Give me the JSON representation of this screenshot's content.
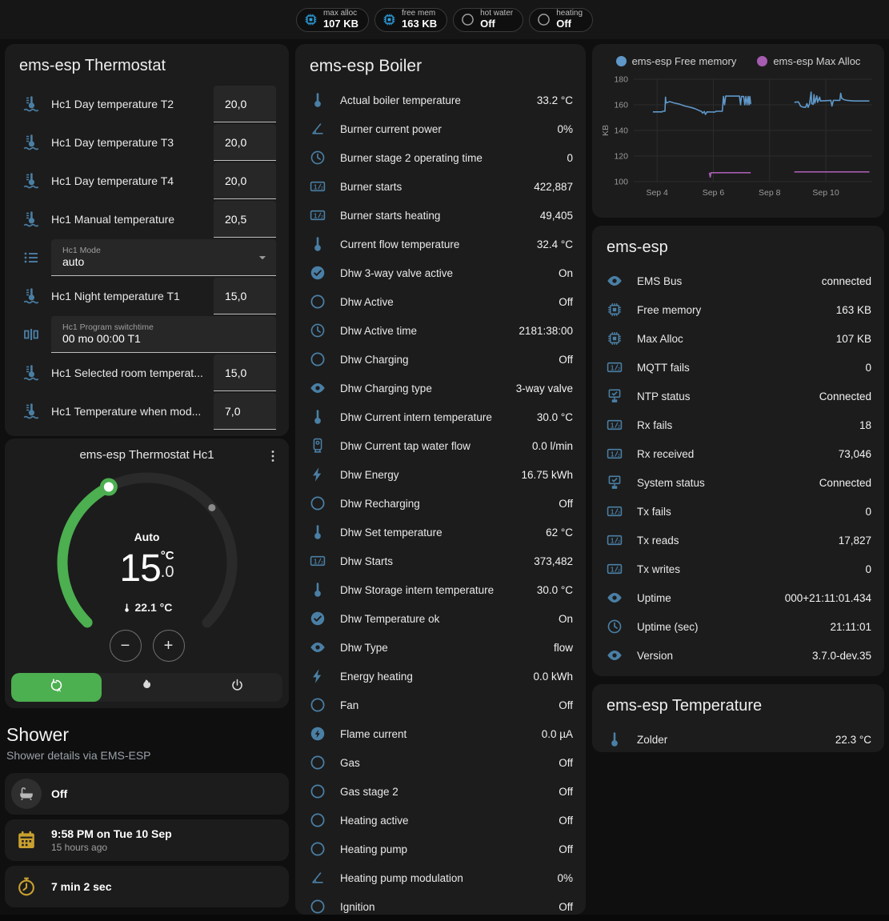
{
  "header": {
    "chips": [
      {
        "icon": "chip",
        "icon_color": "blue",
        "label": "max alloc",
        "value": "107 KB"
      },
      {
        "icon": "chip",
        "icon_color": "blue",
        "label": "free mem",
        "value": "163 KB"
      },
      {
        "icon": "circle",
        "icon_color": "gray",
        "label": "hot water",
        "value": "Off"
      },
      {
        "icon": "circle",
        "icon_color": "gray",
        "label": "heating",
        "value": "Off"
      }
    ]
  },
  "thermostat_card": {
    "title": "ems-esp Thermostat",
    "rows": [
      {
        "type": "number",
        "icon": "thermometer-waves",
        "label": "Hc1 Day temperature T2",
        "value": "20,0"
      },
      {
        "type": "number",
        "icon": "thermometer-waves",
        "label": "Hc1 Day temperature T3",
        "value": "20,0"
      },
      {
        "type": "number",
        "icon": "thermometer-waves",
        "label": "Hc1 Day temperature T4",
        "value": "20,0"
      },
      {
        "type": "number",
        "icon": "thermometer-waves",
        "label": "Hc1 Manual temperature",
        "value": "20,5"
      },
      {
        "type": "select",
        "icon": "list",
        "label": "Hc1 Mode",
        "value": "auto"
      },
      {
        "type": "number",
        "icon": "thermometer-waves",
        "label": "Hc1 Night temperature T1",
        "value": "15,0"
      },
      {
        "type": "text",
        "icon": "pipe-valve",
        "label": "Hc1 Program switchtime",
        "value": "00 mo 00:00 T1"
      },
      {
        "type": "number",
        "icon": "thermometer-waves",
        "label": "Hc1 Selected room temperat...",
        "value": "15,0"
      },
      {
        "type": "number",
        "icon": "thermometer-waves",
        "label": "Hc1 Temperature when mod...",
        "value": "7,0"
      }
    ]
  },
  "dial_card": {
    "title": "ems-esp Thermostat Hc1",
    "mode_label": "Auto",
    "target_int": "15",
    "target_unit": "°C",
    "target_frac": ".0",
    "current": "22.1 °C",
    "minus_label": "−",
    "plus_label": "+",
    "arc_color": "#4caf50",
    "modes": [
      {
        "icon": "autorenew-a",
        "selected": true
      },
      {
        "icon": "fire",
        "selected": false
      },
      {
        "icon": "power",
        "selected": false
      }
    ]
  },
  "shower": {
    "title": "Shower",
    "subtitle": "Shower details via EMS-ESP",
    "cards": [
      {
        "icon": "bathtub",
        "text": "Off"
      },
      {
        "icon": "calendar",
        "text": "9:58 PM on Tue 10 Sep",
        "sub": "15 hours ago"
      },
      {
        "icon": "timer",
        "text": "7 min 2 sec"
      },
      {
        "icon": "snowflake-alert"
      }
    ]
  },
  "boiler_card": {
    "title": "ems-esp Boiler",
    "rows": [
      {
        "icon": "thermometer",
        "label": "Actual boiler temperature",
        "value": "33.2 °C"
      },
      {
        "icon": "angle",
        "label": "Burner current power",
        "value": "0%"
      },
      {
        "icon": "clock",
        "label": "Burner stage 2 operating time",
        "value": "0"
      },
      {
        "icon": "counter",
        "label": "Burner starts",
        "value": "422,887"
      },
      {
        "icon": "counter",
        "label": "Burner starts heating",
        "value": "49,405"
      },
      {
        "icon": "thermometer",
        "label": "Current flow temperature",
        "value": "32.4 °C"
      },
      {
        "icon": "check-circle",
        "label": "Dhw 3-way valve active",
        "value": "On"
      },
      {
        "icon": "circle",
        "label": "Dhw Active",
        "value": "Off"
      },
      {
        "icon": "clock",
        "label": "Dhw Active time",
        "value": "2181:38:00"
      },
      {
        "icon": "circle",
        "label": "Dhw Charging",
        "value": "Off"
      },
      {
        "icon": "eye",
        "label": "Dhw Charging type",
        "value": "3-way valve"
      },
      {
        "icon": "thermometer",
        "label": "Dhw Current intern temperature",
        "value": "30.0 °C"
      },
      {
        "icon": "water-heater",
        "label": "Dhw Current tap water flow",
        "value": "0.0 l/min"
      },
      {
        "icon": "flash",
        "label": "Dhw Energy",
        "value": "16.75 kWh"
      },
      {
        "icon": "circle",
        "label": "Dhw Recharging",
        "value": "Off"
      },
      {
        "icon": "thermometer",
        "label": "Dhw Set temperature",
        "value": "62 °C"
      },
      {
        "icon": "counter",
        "label": "Dhw Starts",
        "value": "373,482"
      },
      {
        "icon": "thermometer",
        "label": "Dhw Storage intern temperature",
        "value": "30.0 °C"
      },
      {
        "icon": "check-circle",
        "label": "Dhw Temperature ok",
        "value": "On"
      },
      {
        "icon": "eye",
        "label": "Dhw Type",
        "value": "flow"
      },
      {
        "icon": "flash",
        "label": "Energy heating",
        "value": "0.0 kWh"
      },
      {
        "icon": "circle",
        "label": "Fan",
        "value": "Off"
      },
      {
        "icon": "flash-circle",
        "label": "Flame current",
        "value": "0.0 µA"
      },
      {
        "icon": "circle",
        "label": "Gas",
        "value": "Off"
      },
      {
        "icon": "circle",
        "label": "Gas stage 2",
        "value": "Off"
      },
      {
        "icon": "circle",
        "label": "Heating active",
        "value": "Off"
      },
      {
        "icon": "circle",
        "label": "Heating pump",
        "value": "Off"
      },
      {
        "icon": "angle",
        "label": "Heating pump modulation",
        "value": "0%"
      },
      {
        "icon": "circle",
        "label": "Ignition",
        "value": "Off"
      }
    ]
  },
  "emsesp_card": {
    "title": "ems-esp",
    "rows": [
      {
        "icon": "eye",
        "label": "EMS Bus",
        "value": "connected"
      },
      {
        "icon": "chip",
        "label": "Free memory",
        "value": "163 KB"
      },
      {
        "icon": "chip",
        "label": "Max Alloc",
        "value": "107 KB"
      },
      {
        "icon": "counter",
        "label": "MQTT fails",
        "value": "0"
      },
      {
        "icon": "lan-check",
        "label": "NTP status",
        "value": "Connected"
      },
      {
        "icon": "counter",
        "label": "Rx fails",
        "value": "18"
      },
      {
        "icon": "counter",
        "label": "Rx received",
        "value": "73,046"
      },
      {
        "icon": "lan-check",
        "label": "System status",
        "value": "Connected"
      },
      {
        "icon": "counter",
        "label": "Tx fails",
        "value": "0"
      },
      {
        "icon": "counter",
        "label": "Tx reads",
        "value": "17,827"
      },
      {
        "icon": "counter",
        "label": "Tx writes",
        "value": "0"
      },
      {
        "icon": "eye",
        "label": "Uptime",
        "value": "000+21:11:01.434"
      },
      {
        "icon": "clock",
        "label": "Uptime (sec)",
        "value": "21:11:01"
      },
      {
        "icon": "eye",
        "label": "Version",
        "value": "3.7.0-dev.35"
      }
    ]
  },
  "temperature_card": {
    "title": "ems-esp Temperature",
    "rows": [
      {
        "icon": "thermometer",
        "label": "Zolder",
        "value": "22.3 °C"
      }
    ]
  },
  "chart_data": {
    "type": "line",
    "ylabel": "KB",
    "ylim": [
      100,
      180
    ],
    "yticks": [
      100,
      120,
      140,
      160,
      180
    ],
    "xlim": [
      3.17,
      11.65
    ],
    "xticks": [
      {
        "x": 4,
        "label": "Sep 4"
      },
      {
        "x": 6,
        "label": "Sep 6"
      },
      {
        "x": 8,
        "label": "Sep 8"
      },
      {
        "x": 10,
        "label": "Sep 10"
      }
    ],
    "grid": true,
    "legend_position": "top",
    "series": [
      {
        "name": "ems-esp Free memory",
        "color": "#5f97c8",
        "segments": [
          [
            [
              3.85,
              154.5
            ],
            [
              4.18,
              154.5
            ],
            [
              4.2,
              155
            ],
            [
              4.28,
              155
            ],
            [
              4.3,
              166
            ],
            [
              4.32,
              161.5
            ],
            [
              4.45,
              162.5
            ],
            [
              4.6,
              161.5
            ],
            [
              4.8,
              160.5
            ],
            [
              5.0,
              159
            ],
            [
              5.2,
              158
            ],
            [
              5.35,
              157
            ],
            [
              5.5,
              155.5
            ],
            [
              5.58,
              154.8
            ],
            [
              5.62,
              153.5
            ],
            [
              5.68,
              154.8
            ],
            [
              5.72,
              152.5
            ],
            [
              5.78,
              154.5
            ],
            [
              6.05,
              154.3
            ],
            [
              6.1,
              155
            ],
            [
              6.32,
              155
            ],
            [
              6.36,
              166.5
            ],
            [
              6.4,
              160
            ],
            [
              6.44,
              166.8
            ],
            [
              6.5,
              166.8
            ],
            [
              6.93,
              166.8
            ],
            [
              6.97,
              160
            ],
            [
              7.0,
              166.5
            ],
            [
              7.08,
              166.5
            ],
            [
              7.12,
              160
            ],
            [
              7.16,
              166.5
            ],
            [
              7.2,
              160
            ],
            [
              7.24,
              166.5
            ],
            [
              7.27,
              160
            ],
            [
              7.3,
              166.5
            ],
            [
              7.33,
              160.5
            ]
          ],
          [
            [
              8.88,
              162
            ],
            [
              9.02,
              162.3
            ],
            [
              9.06,
              161
            ],
            [
              9.1,
              159
            ],
            [
              9.18,
              158.3
            ],
            [
              9.28,
              158
            ],
            [
              9.33,
              161
            ],
            [
              9.37,
              158
            ],
            [
              9.42,
              160.5
            ],
            [
              9.48,
              170
            ],
            [
              9.5,
              161
            ],
            [
              9.55,
              160.3
            ],
            [
              9.58,
              168
            ],
            [
              9.61,
              161.3
            ],
            [
              9.68,
              167
            ],
            [
              9.71,
              162
            ],
            [
              9.78,
              166
            ],
            [
              9.81,
              163
            ],
            [
              9.95,
              163.2
            ],
            [
              10.18,
              163.5
            ],
            [
              10.22,
              159
            ],
            [
              10.27,
              163.5
            ],
            [
              10.5,
              163.5
            ],
            [
              10.53,
              169
            ],
            [
              10.57,
              165
            ],
            [
              10.65,
              164
            ],
            [
              10.75,
              163.5
            ],
            [
              11.0,
              163
            ],
            [
              11.55,
              163
            ]
          ]
        ]
      },
      {
        "name": "ems-esp Max Alloc",
        "color": "#a65cb0",
        "segments": [
          [
            [
              5.86,
              107
            ],
            [
              5.89,
              103.5
            ],
            [
              5.92,
              107
            ],
            [
              7.33,
              107
            ]
          ],
          [
            [
              8.88,
              107.6
            ],
            [
              11.55,
              107.6
            ]
          ]
        ]
      }
    ]
  }
}
